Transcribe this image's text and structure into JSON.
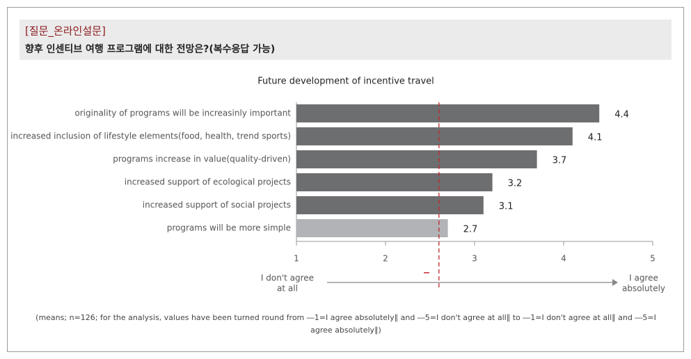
{
  "header": {
    "title": "[질문_온라인설문]",
    "subtitle": "향후 인센티브 여행 프로그램에 대한 전망은?(복수응답 가능)"
  },
  "chart_data": {
    "type": "bar",
    "orientation": "horizontal",
    "title": "Future development of incentive travel",
    "categories": [
      "originality of programs will be increasinly important",
      "increased inclusion of lifestyle elements(food, health, trend sports)",
      "programs increase in value(quality-driven)",
      "increased support of ecological projects",
      "increased support of social projects",
      "programs will be more simple"
    ],
    "values": [
      4.4,
      4.1,
      3.7,
      3.2,
      3.1,
      2.7
    ],
    "colors": [
      "#6d6e70",
      "#6d6e70",
      "#6d6e70",
      "#6d6e70",
      "#6d6e70",
      "#b1b3b6"
    ],
    "xlim": [
      1,
      5
    ],
    "xticks": [
      1,
      2,
      3,
      4,
      5
    ],
    "reference_line": 2.6,
    "reference_color": "#c0282d",
    "axis_left_label": [
      "I don't agree",
      "at all"
    ],
    "axis_right_label": [
      "I agree",
      "absolutely"
    ],
    "footnote": [
      "(means; n=126; for the analysis, values have been turned round from ―1=I agree absolutely∥ and ―5=I don't agree at all∥ to ―1=I don't agree at all∥ and ―5=I",
      "agree absolutely∥)"
    ]
  }
}
